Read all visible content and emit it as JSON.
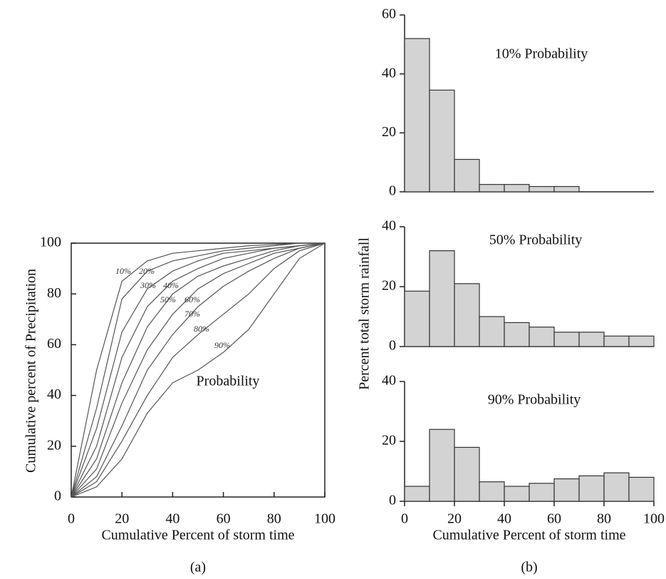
{
  "chart_data": [
    {
      "type": "line",
      "caption": "(a)",
      "xlabel": "Cumulative Percent of storm time",
      "ylabel": "Cumulative percent of Precipitation",
      "annotation": "Probability",
      "x": [
        0,
        10,
        20,
        30,
        40,
        50,
        60,
        70,
        80,
        90,
        100
      ],
      "xlim": [
        0,
        100
      ],
      "ylim": [
        0,
        100
      ],
      "xticks": [
        0,
        20,
        40,
        60,
        80,
        100
      ],
      "yticks": [
        0,
        20,
        40,
        60,
        80,
        100
      ],
      "series": [
        {
          "name": "10%",
          "color": "#555555",
          "values": [
            0,
            50,
            85,
            93,
            96,
            97,
            98,
            99,
            99.5,
            100,
            100
          ]
        },
        {
          "name": "20%",
          "color": "#555555",
          "values": [
            0,
            35,
            78,
            89,
            93,
            95,
            97,
            98,
            99,
            100,
            100
          ]
        },
        {
          "name": "30%",
          "color": "#555555",
          "values": [
            0,
            27,
            65,
            82,
            89,
            93,
            96,
            97,
            98,
            99,
            100
          ]
        },
        {
          "name": "40%",
          "color": "#555555",
          "values": [
            0,
            20,
            55,
            75,
            85,
            90,
            94,
            96,
            98,
            99,
            100
          ]
        },
        {
          "name": "50%",
          "color": "#555555",
          "values": [
            0,
            15,
            45,
            67,
            80,
            87,
            91,
            94,
            97,
            99,
            100
          ]
        },
        {
          "name": "60%",
          "color": "#555555",
          "values": [
            0,
            11,
            37,
            58,
            72,
            82,
            88,
            92,
            96,
            98,
            100
          ]
        },
        {
          "name": "70%",
          "color": "#555555",
          "values": [
            0,
            8,
            28,
            50,
            64,
            75,
            83,
            89,
            94,
            98,
            100
          ]
        },
        {
          "name": "80%",
          "color": "#555555",
          "values": [
            0,
            6,
            22,
            40,
            55,
            64,
            72,
            80,
            90,
            97,
            100
          ]
        },
        {
          "name": "90%",
          "color": "#555555",
          "values": [
            0,
            4,
            15,
            33,
            45,
            50,
            57,
            66,
            80,
            94,
            100
          ]
        }
      ]
    },
    {
      "type": "histogram",
      "title": "10% Probability",
      "color": "#d3d3d3",
      "bins": [
        0,
        10,
        20,
        30,
        40,
        50,
        60,
        70,
        80,
        90,
        100
      ],
      "values": [
        52,
        34.5,
        11,
        2.5,
        2.5,
        1.8,
        1.8,
        0,
        0,
        0
      ],
      "xlim": [
        0,
        100
      ],
      "ylim": [
        0,
        60
      ],
      "yticks": [
        0,
        20,
        40,
        60
      ]
    },
    {
      "type": "histogram",
      "title": "50%  Probability",
      "ylabel": "Percent total storm rainfall",
      "color": "#d3d3d3",
      "bins": [
        0,
        10,
        20,
        30,
        40,
        50,
        60,
        70,
        80,
        90,
        100
      ],
      "values": [
        18.5,
        32,
        21,
        10,
        8,
        6.5,
        4.8,
        4.8,
        3.5,
        3.5
      ],
      "xlim": [
        0,
        100
      ],
      "ylim": [
        0,
        40
      ],
      "yticks": [
        0,
        20,
        40
      ]
    },
    {
      "type": "histogram",
      "title": "90% Probability",
      "xlabel": "Cumulative Percent of storm time",
      "caption": "(b)",
      "color": "#d3d3d3",
      "bins": [
        0,
        10,
        20,
        30,
        40,
        50,
        60,
        70,
        80,
        90,
        100
      ],
      "values": [
        5,
        24,
        18,
        6.5,
        5,
        6,
        7.5,
        8.5,
        9.5,
        8
      ],
      "xlim": [
        0,
        100
      ],
      "ylim": [
        0,
        40
      ],
      "yticks": [
        0,
        20,
        40
      ],
      "xticks": [
        0,
        20,
        40,
        60,
        80,
        100
      ]
    }
  ]
}
